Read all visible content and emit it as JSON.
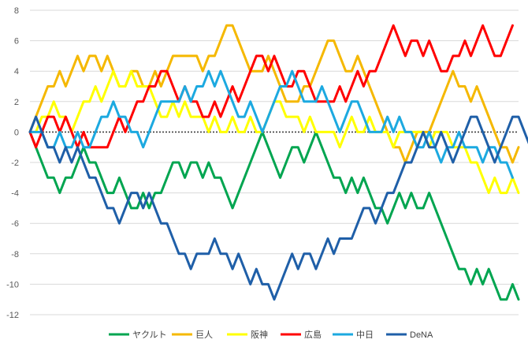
{
  "chart_data": {
    "type": "line",
    "title": "",
    "xlabel": "",
    "ylabel": "",
    "ylim": [
      -12,
      8
    ],
    "yticks": [
      8,
      6,
      4,
      2,
      0,
      -2,
      -4,
      -6,
      -8,
      -10,
      -12
    ],
    "grid": "horizontal",
    "zero_line": "dotted",
    "legend_position": "bottom",
    "series": [
      {
        "name": "ヤクルト",
        "color": "#00a550",
        "values": [
          0,
          -1,
          -2,
          -3,
          -3,
          -4,
          -3,
          -3,
          -2,
          -1,
          -2,
          -2,
          -3,
          -4,
          -4,
          -3,
          -4,
          -5,
          -5,
          -4,
          -5,
          -4,
          -4,
          -3,
          -2,
          -2,
          -3,
          -2,
          -2,
          -3,
          -2,
          -3,
          -3,
          -4,
          -5,
          -4,
          -3,
          -2,
          -1,
          0,
          -1,
          -2,
          -3,
          -2,
          -1,
          -1,
          -2,
          -1,
          0,
          -1,
          -2,
          -3,
          -3,
          -4,
          -3,
          -4,
          -3,
          -4,
          -5,
          -5,
          -6,
          -5,
          -4,
          -5,
          -4,
          -5,
          -5,
          -4,
          -5,
          -6,
          -7,
          -8,
          -9,
          -9,
          -10,
          -9,
          -10,
          -9,
          -10,
          -11,
          -11,
          -10,
          -11
        ]
      },
      {
        "name": "巨人",
        "color": "#f5b800",
        "values": [
          0,
          1,
          2,
          3,
          3,
          4,
          3,
          4,
          5,
          4,
          5,
          5,
          4,
          5,
          4,
          3,
          3,
          4,
          4,
          3,
          3,
          4,
          3,
          4,
          5,
          5,
          5,
          5,
          5,
          4,
          5,
          5,
          6,
          7,
          7,
          6,
          5,
          4,
          4,
          4,
          5,
          4,
          3,
          2,
          2,
          2,
          3,
          3,
          4,
          5,
          6,
          6,
          5,
          4,
          4,
          5,
          4,
          3,
          2,
          1,
          0,
          -1,
          -1,
          -2,
          -1,
          0,
          0,
          0,
          1,
          2,
          3,
          4,
          3,
          3,
          2,
          3,
          2,
          1,
          0,
          -1,
          -1,
          -2,
          -1
        ]
      },
      {
        "name": "阪神",
        "color": "#ffff00",
        "values": [
          0,
          0,
          1,
          1,
          2,
          1,
          1,
          0,
          1,
          2,
          2,
          3,
          2,
          3,
          4,
          3,
          3,
          4,
          3,
          3,
          3,
          2,
          1,
          1,
          2,
          1,
          2,
          1,
          1,
          1,
          0,
          1,
          0,
          0,
          1,
          0,
          0,
          1,
          0,
          0,
          1,
          2,
          2,
          1,
          1,
          1,
          0,
          1,
          0,
          0,
          0,
          0,
          -1,
          0,
          1,
          0,
          0,
          1,
          0,
          0,
          0,
          -1,
          0,
          0,
          0,
          0,
          0,
          -1,
          0,
          0,
          0,
          -1,
          -1,
          -1,
          -2,
          -2,
          -3,
          -4,
          -3,
          -4,
          -4,
          -3,
          -4
        ]
      },
      {
        "name": "広島",
        "color": "#ff0000",
        "values": [
          0,
          -1,
          0,
          1,
          1,
          0,
          1,
          0,
          -1,
          0,
          -1,
          -1,
          -1,
          -1,
          0,
          1,
          0,
          1,
          2,
          2,
          3,
          3,
          4,
          4,
          3,
          2,
          3,
          2,
          2,
          1,
          1,
          2,
          1,
          2,
          3,
          2,
          3,
          4,
          5,
          5,
          4,
          5,
          4,
          3,
          3,
          4,
          4,
          3,
          2,
          2,
          2,
          2,
          3,
          2,
          3,
          4,
          3,
          4,
          4,
          5,
          6,
          7,
          6,
          5,
          6,
          6,
          5,
          6,
          5,
          4,
          4,
          5,
          5,
          6,
          5,
          6,
          7,
          6,
          5,
          5,
          6,
          7
        ]
      },
      {
        "name": "中日",
        "color": "#1ca9e0",
        "values": [
          0,
          0,
          0,
          -1,
          -1,
          0,
          -1,
          -1,
          0,
          -1,
          -1,
          0,
          1,
          1,
          2,
          1,
          1,
          0,
          0,
          -1,
          0,
          1,
          2,
          2,
          2,
          2,
          3,
          2,
          3,
          3,
          4,
          3,
          4,
          3,
          2,
          1,
          1,
          2,
          1,
          0,
          1,
          2,
          3,
          3,
          4,
          3,
          2,
          2,
          2,
          3,
          2,
          1,
          0,
          1,
          2,
          2,
          1,
          0,
          0,
          0,
          1,
          0,
          1,
          0,
          0,
          -1,
          -1,
          0,
          -1,
          -2,
          -1,
          -1,
          0,
          -1,
          -1,
          -1,
          -2,
          -1,
          -1,
          -2,
          -2,
          -3
        ]
      },
      {
        "name": "DeNA",
        "color": "#1f5fa8",
        "values": [
          0,
          1,
          0,
          -1,
          -1,
          -2,
          -1,
          -2,
          -1,
          -2,
          -3,
          -3,
          -4,
          -5,
          -5,
          -6,
          -5,
          -4,
          -4,
          -5,
          -4,
          -5,
          -6,
          -6,
          -7,
          -8,
          -8,
          -9,
          -8,
          -8,
          -8,
          -7,
          -8,
          -8,
          -9,
          -8,
          -9,
          -10,
          -9,
          -10,
          -10,
          -11,
          -10,
          -9,
          -8,
          -9,
          -8,
          -8,
          -9,
          -8,
          -7,
          -8,
          -7,
          -7,
          -7,
          -6,
          -5,
          -5,
          -6,
          -5,
          -4,
          -4,
          -3,
          -2,
          -2,
          -1,
          0,
          -1,
          -1,
          0,
          -1,
          -2,
          -1,
          0,
          1,
          1,
          0,
          -1,
          -2,
          -1,
          0,
          1,
          1,
          0,
          -1
        ]
      }
    ]
  }
}
